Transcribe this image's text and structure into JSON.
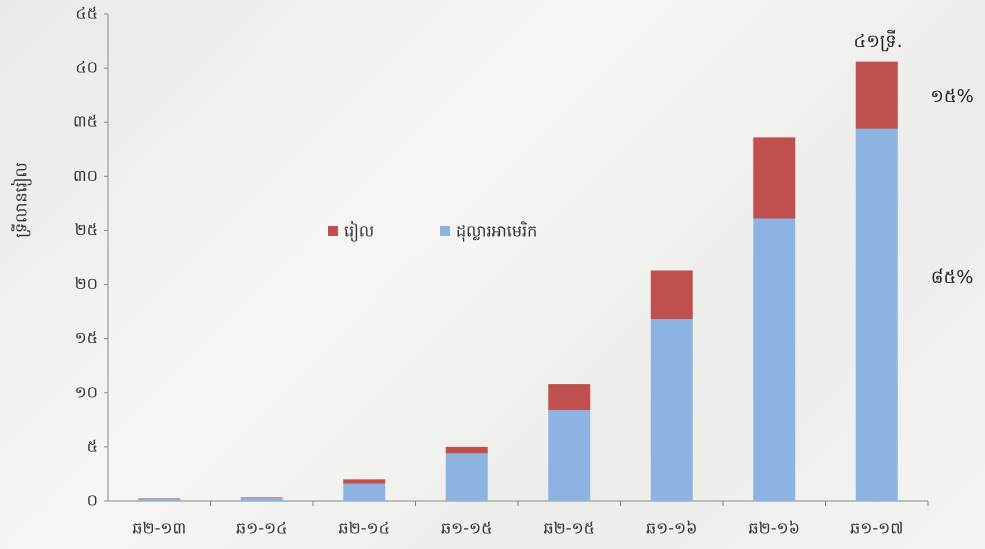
{
  "chart_data": {
    "type": "bar",
    "stacked": true,
    "y_label": "ទ្រីលានរៀល",
    "categories": [
      "ឆ២-១៣",
      "ឆ១-១៤",
      "ឆ២-១៤",
      "ឆ១-១៥",
      "ឆ២-១៥",
      "ឆ១-១៦",
      "ឆ២-១៦",
      "ឆ១-១៧"
    ],
    "series": [
      {
        "name": "រៀល",
        "color": "#c0504d",
        "values": [
          0.05,
          0.05,
          0.4,
          0.6,
          2.4,
          4.5,
          7.5,
          6.2
        ]
      },
      {
        "name": "ដុល្លារអាមេរិក",
        "color": "#8db3e2",
        "values": [
          0.2,
          0.3,
          1.6,
          4.4,
          8.4,
          16.8,
          26.1,
          34.4
        ]
      }
    ],
    "ylim": [
      0,
      45
    ],
    "yticks": [
      {
        "value": 0,
        "label": "០"
      },
      {
        "value": 5,
        "label": "៥"
      },
      {
        "value": 10,
        "label": "១០"
      },
      {
        "value": 15,
        "label": "១៥"
      },
      {
        "value": 20,
        "label": "២០"
      },
      {
        "value": 25,
        "label": "២៥"
      },
      {
        "value": 30,
        "label": "៣០"
      },
      {
        "value": 35,
        "label": "៣៥"
      },
      {
        "value": 40,
        "label": "៤០"
      },
      {
        "value": 45,
        "label": "៤៥"
      }
    ],
    "annotations": [
      "៤១ទ្រី.",
      "១៥%",
      "៨៥%"
    ]
  }
}
